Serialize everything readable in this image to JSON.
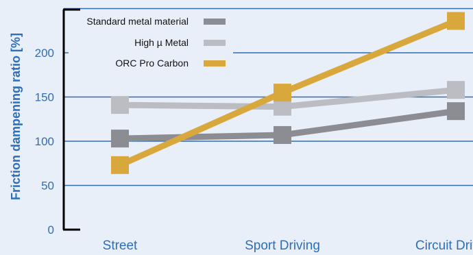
{
  "chart_data": {
    "type": "line",
    "ylabel": "Friction dampening ratio [%]",
    "categories": [
      "Street",
      "Sport Driving",
      "Circuit Driving"
    ],
    "yticks": [
      0,
      50,
      100,
      150,
      200
    ],
    "ylim": [
      0,
      250
    ],
    "grid": true,
    "legend_placement": "top-left",
    "series": [
      {
        "name": "Standard metal material",
        "values": [
          103,
          107,
          134
        ],
        "color": "#8c8c93"
      },
      {
        "name": "High  µ Metal",
        "values": [
          141,
          139,
          158
        ],
        "color": "#bcbcc3"
      },
      {
        "name": "ORC Pro Carbon",
        "values": [
          73,
          155,
          236
        ],
        "color": "#d9a83c"
      }
    ],
    "colors": {
      "background": "#e9eff8",
      "grid": "#2f6db6",
      "text": "#2f6db6",
      "axis": "#000000"
    }
  }
}
